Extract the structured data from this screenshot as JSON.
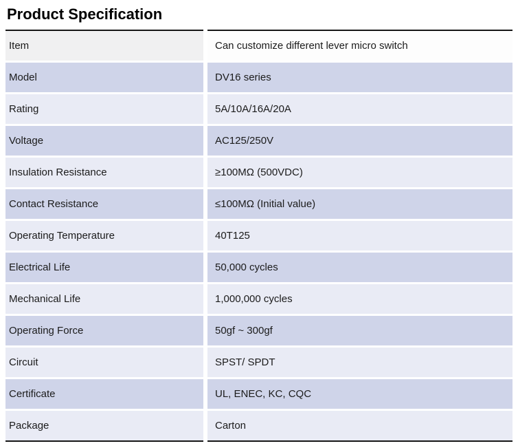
{
  "page": {
    "title": "Product Specification"
  },
  "colors": {
    "band-dark": "#cfd4e9",
    "band-light": "#e9ebf5",
    "header-left": "#f0f0f1",
    "header-right": "#fdfdfd",
    "border-dark": "#161616",
    "text": "#1b1b1b"
  },
  "table": {
    "rows": [
      {
        "label": "Item",
        "value": "Can customize different lever micro switch"
      },
      {
        "label": "Model",
        "value": "DV16 series"
      },
      {
        "label": "Rating",
        "value": "5A/10A/16A/20A"
      },
      {
        "label": "Voltage",
        "value": "AC125/250V"
      },
      {
        "label": "Insulation Resistance",
        "value": "≥100MΩ (500VDC)"
      },
      {
        "label": "Contact Resistance",
        "value": "≤100MΩ (Initial value)"
      },
      {
        "label": "Operating Temperature",
        "value": "40T125"
      },
      {
        "label": "Electrical Life",
        "value": "50,000 cycles"
      },
      {
        "label": "Mechanical Life",
        "value": "1,000,000 cycles"
      },
      {
        "label": "Operating Force",
        "value": "50gf ~ 300gf"
      },
      {
        "label": "Circuit",
        "value": "SPST/ SPDT"
      },
      {
        "label": "Certificate",
        "value": "UL, ENEC, KC, CQC"
      },
      {
        "label": "Package",
        "value": "Carton"
      }
    ]
  }
}
